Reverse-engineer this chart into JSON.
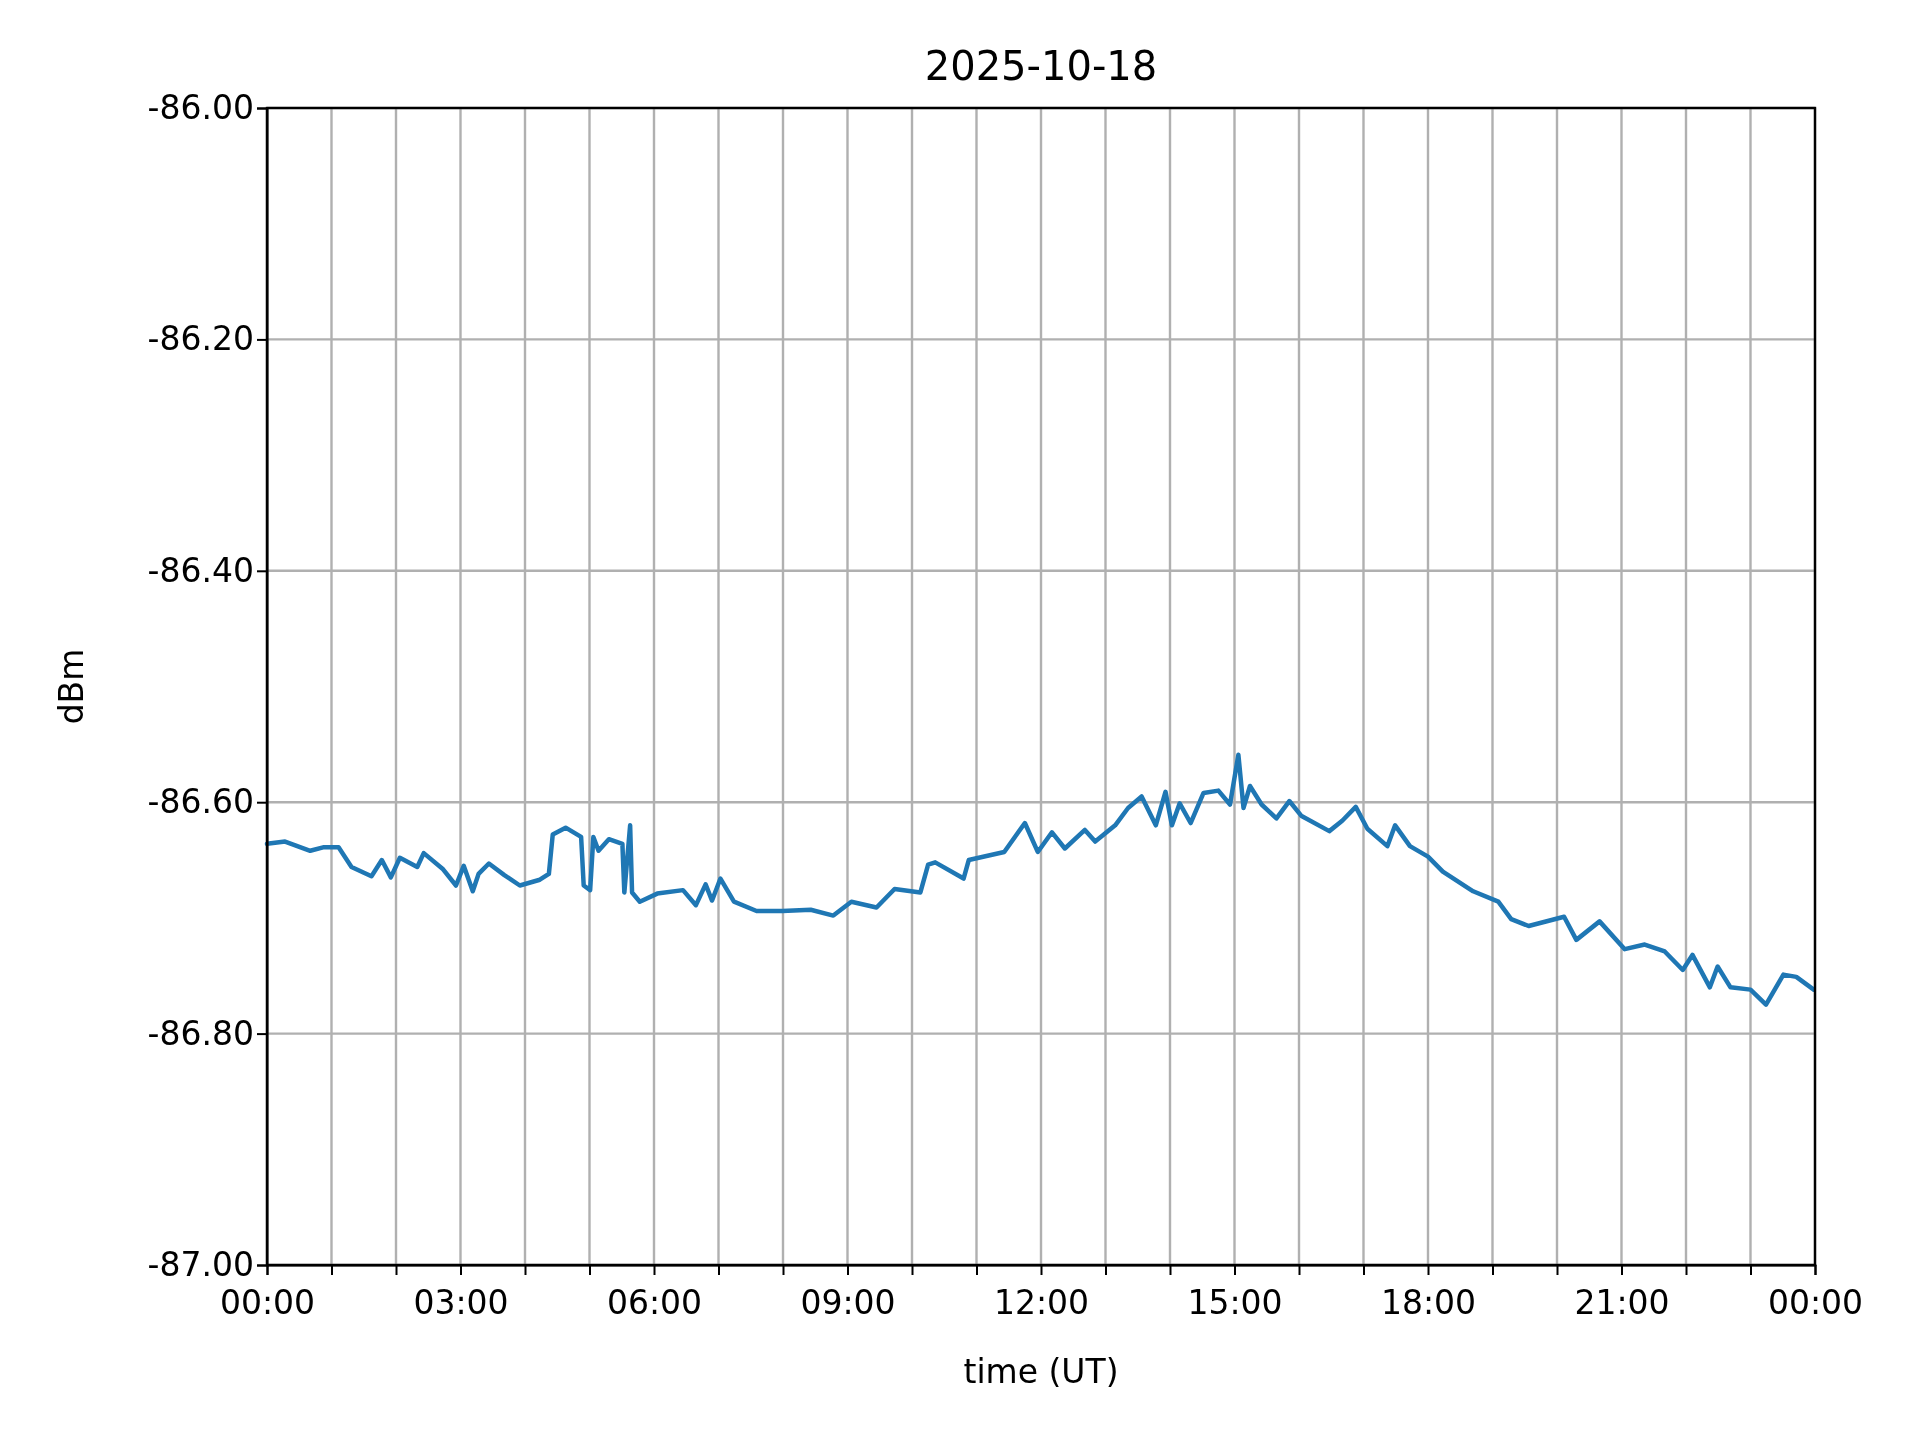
{
  "chart_data": {
    "type": "line",
    "title": "2025-10-18",
    "xlabel": "time (UT)",
    "ylabel": "dBm",
    "xlim": [
      0,
      24
    ],
    "xticks": [
      {
        "value": 0,
        "label": "00:00"
      },
      {
        "value": 1,
        "label": null
      },
      {
        "value": 2,
        "label": null
      },
      {
        "value": 3,
        "label": "03:00"
      },
      {
        "value": 4,
        "label": null
      },
      {
        "value": 5,
        "label": null
      },
      {
        "value": 6,
        "label": "06:00"
      },
      {
        "value": 7,
        "label": null
      },
      {
        "value": 8,
        "label": null
      },
      {
        "value": 9,
        "label": "09:00"
      },
      {
        "value": 10,
        "label": null
      },
      {
        "value": 11,
        "label": null
      },
      {
        "value": 12,
        "label": "12:00"
      },
      {
        "value": 13,
        "label": null
      },
      {
        "value": 14,
        "label": null
      },
      {
        "value": 15,
        "label": "15:00"
      },
      {
        "value": 16,
        "label": null
      },
      {
        "value": 17,
        "label": null
      },
      {
        "value": 18,
        "label": "18:00"
      },
      {
        "value": 19,
        "label": null
      },
      {
        "value": 20,
        "label": null
      },
      {
        "value": 21,
        "label": "21:00"
      },
      {
        "value": 22,
        "label": null
      },
      {
        "value": 23,
        "label": null
      },
      {
        "value": 24,
        "label": "00:00"
      }
    ],
    "ylim": [
      -87,
      -86
    ],
    "yticks": [
      {
        "value": -87,
        "label": "-87.00"
      },
      {
        "value": -86.8,
        "label": "-86.80"
      },
      {
        "value": -86.6,
        "label": "-86.60"
      },
      {
        "value": -86.4,
        "label": "-86.40"
      },
      {
        "value": -86.2,
        "label": "-86.20"
      },
      {
        "value": -86,
        "label": "-86.00"
      }
    ],
    "grid": true,
    "line_style": "solid",
    "marker": "none",
    "series": [
      {
        "color": "#1f77b4",
        "x": [
          0,
          0.28,
          0.67,
          0.87,
          1.11,
          1.31,
          1.62,
          1.78,
          1.92,
          2.06,
          2.33,
          2.43,
          2.73,
          2.93,
          3.05,
          3.19,
          3.28,
          3.44,
          3.68,
          3.92,
          4.23,
          4.37,
          4.43,
          4.63,
          4.87,
          4.91,
          5.01,
          5.06,
          5.14,
          5.3,
          5.51,
          5.54,
          5.63,
          5.66,
          5.78,
          6.05,
          6.45,
          6.65,
          6.8,
          6.9,
          7.03,
          7.24,
          7.59,
          7.99,
          8.43,
          8.78,
          9.06,
          9.45,
          9.73,
          10.13,
          10.25,
          10.36,
          10.8,
          10.88,
          11.43,
          11.75,
          11.95,
          12.17,
          12.37,
          12.68,
          12.84,
          13.15,
          13.35,
          13.56,
          13.78,
          13.93,
          14.03,
          14.15,
          14.32,
          14.52,
          14.75,
          14.93,
          15.06,
          15.14,
          15.24,
          15.42,
          15.65,
          15.85,
          16.04,
          16.47,
          16.67,
          16.88,
          17.06,
          17.37,
          17.49,
          17.72,
          18,
          18.23,
          18.7,
          19.09,
          19.29,
          19.56,
          20.11,
          20.3,
          20.66,
          21.05,
          21.36,
          21.67,
          21.95,
          22.1,
          22.37,
          22.49,
          22.69,
          23,
          23.24,
          23.51,
          23.71,
          23.98
        ],
        "values": [
          -86.636,
          -86.634,
          -86.642,
          -86.639,
          -86.639,
          -86.656,
          -86.664,
          -86.65,
          -86.665,
          -86.648,
          -86.656,
          -86.644,
          -86.658,
          -86.672,
          -86.655,
          -86.677,
          -86.662,
          -86.653,
          -86.663,
          -86.672,
          -86.667,
          -86.662,
          -86.628,
          -86.622,
          -86.63,
          -86.672,
          -86.676,
          -86.63,
          -86.642,
          -86.632,
          -86.636,
          -86.678,
          -86.62,
          -86.678,
          -86.686,
          -86.679,
          -86.676,
          -86.689,
          -86.671,
          -86.685,
          -86.666,
          -86.686,
          -86.694,
          -86.694,
          -86.693,
          -86.698,
          -86.686,
          -86.691,
          -86.675,
          -86.678,
          -86.654,
          -86.652,
          -86.666,
          -86.65,
          -86.643,
          -86.618,
          -86.643,
          -86.626,
          -86.64,
          -86.624,
          -86.634,
          -86.62,
          -86.605,
          -86.595,
          -86.62,
          -86.591,
          -86.62,
          -86.601,
          -86.618,
          -86.592,
          -86.59,
          -86.602,
          -86.559,
          -86.605,
          -86.586,
          -86.602,
          -86.614,
          -86.599,
          -86.612,
          -86.625,
          -86.616,
          -86.604,
          -86.623,
          -86.638,
          -86.62,
          -86.638,
          -86.647,
          -86.66,
          -86.677,
          -86.686,
          -86.701,
          -86.707,
          -86.699,
          -86.719,
          -86.703,
          -86.727,
          -86.723,
          -86.729,
          -86.745,
          -86.732,
          -86.76,
          -86.742,
          -86.76,
          -86.762,
          -86.775,
          -86.749,
          -86.751,
          -86.762
        ]
      }
    ]
  }
}
